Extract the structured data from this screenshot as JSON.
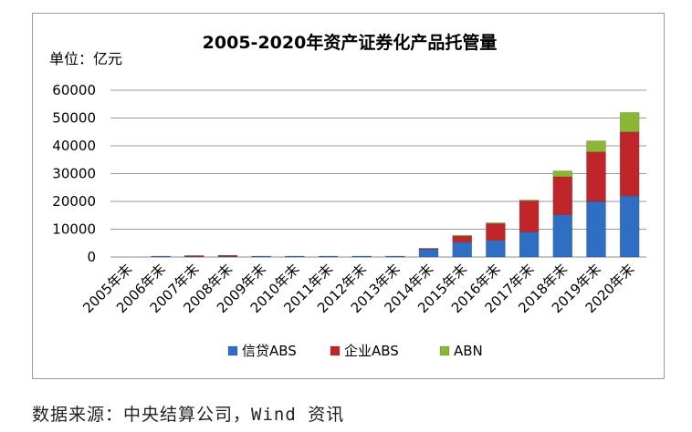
{
  "chart_data": {
    "type": "bar",
    "stacked": true,
    "title": "2005-2020年资产证券化产品托管量",
    "unit_label": "单位：亿元",
    "categories": [
      "2005年末",
      "2006年末",
      "2007年末",
      "2008年末",
      "2009年末",
      "2010年末",
      "2011年末",
      "2012年末",
      "2013年末",
      "2014年末",
      "2015年末",
      "2016年末",
      "2017年末",
      "2018年末",
      "2019年末",
      "2020年末"
    ],
    "series": [
      {
        "name": "信贷ABS",
        "color": "#2e6fc4",
        "values": [
          0,
          100,
          200,
          300,
          100,
          50,
          20,
          100,
          200,
          2800,
          5300,
          6000,
          9000,
          15200,
          20000,
          22000
        ]
      },
      {
        "name": "企业ABS",
        "color": "#c0252a",
        "values": [
          0,
          0,
          100,
          50,
          0,
          0,
          0,
          0,
          0,
          200,
          2200,
          6000,
          11200,
          13700,
          17800,
          23000
        ]
      },
      {
        "name": "ABN",
        "color": "#8ab834",
        "values": [
          0,
          0,
          0,
          0,
          0,
          0,
          0,
          0,
          0,
          0,
          300,
          200,
          300,
          2100,
          4000,
          7000
        ]
      }
    ],
    "ylim": [
      0,
      60000
    ],
    "yticks": [
      "60000",
      "50000",
      "40000",
      "30000",
      "20000",
      "10000",
      "0"
    ],
    "grid": true,
    "legend_position": "bottom"
  },
  "source_text": "数据来源：中央结算公司，Wind 资讯"
}
